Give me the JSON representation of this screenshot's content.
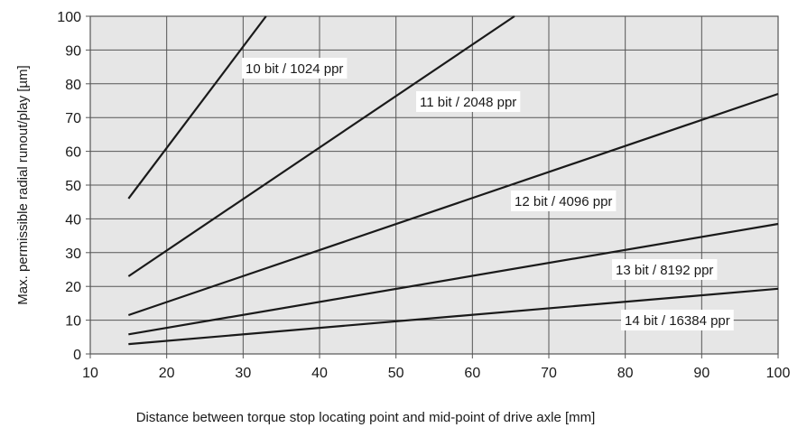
{
  "chart_data": {
    "type": "line",
    "title": "",
    "xlabel": "Distance between torque stop locating point and mid-point of drive axle [mm]",
    "ylabel": "Max. permissible radial runout/play [µm]",
    "xlim": [
      10,
      100
    ],
    "ylim": [
      0,
      100
    ],
    "xticks": [
      "10",
      "20",
      "30",
      "40",
      "50",
      "60",
      "70",
      "80",
      "90",
      "100"
    ],
    "yticks": [
      "0",
      "10",
      "20",
      "30",
      "40",
      "50",
      "60",
      "70",
      "80",
      "90",
      "100"
    ],
    "grid": true,
    "colors": {
      "plot_background": "#e6e6e6",
      "grid": "#555555",
      "line": "#1a1a1a",
      "label_background": "#ffffff"
    },
    "series": [
      {
        "name": "10 bit / 1024 ppr",
        "x": [
          15,
          33
        ],
        "y": [
          46,
          100
        ]
      },
      {
        "name": "11 bit / 2048 ppr",
        "x": [
          15,
          65.5
        ],
        "y": [
          23,
          100
        ]
      },
      {
        "name": "12 bit / 4096 ppr",
        "x": [
          15,
          100
        ],
        "y": [
          11.5,
          77
        ]
      },
      {
        "name": "13 bit / 8192 ppr",
        "x": [
          15,
          100
        ],
        "y": [
          5.8,
          38.5
        ]
      },
      {
        "name": "14 bit / 16384 ppr",
        "x": [
          15,
          100
        ],
        "y": [
          2.9,
          19.3
        ]
      }
    ]
  }
}
